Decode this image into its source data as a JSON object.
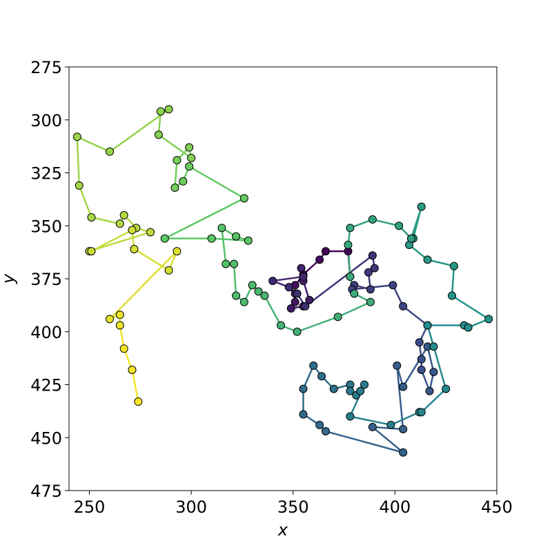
{
  "chart_data": {
    "type": "trajectory",
    "x_label": "x",
    "y_label": "y",
    "xlim": [
      240,
      450
    ],
    "ylim": [
      275,
      475
    ],
    "y_inverted": true,
    "xticks": [
      250,
      300,
      350,
      400,
      450
    ],
    "yticks": [
      275,
      300,
      325,
      350,
      375,
      400,
      425,
      450,
      475
    ],
    "colormap": [
      "#440154",
      "#3b528b",
      "#21918c",
      "#5ec962",
      "#fde725"
    ],
    "edge_color": "#000000",
    "x": [
      378,
      377,
      366,
      363,
      355,
      351,
      348,
      351,
      351,
      349,
      355,
      358,
      355,
      354,
      355,
      340,
      348,
      352,
      356,
      389,
      390,
      387,
      388,
      380,
      379,
      399,
      404,
      416,
      412,
      413,
      413,
      417,
      419,
      416,
      404,
      401,
      404,
      389,
      404,
      366,
      363,
      355,
      355,
      360,
      364,
      370,
      378,
      378,
      381,
      383,
      385,
      378,
      398,
      412,
      413,
      425,
      419,
      416,
      434,
      436,
      446,
      428,
      429,
      416,
      407,
      409,
      413,
      408,
      402,
      389,
      378,
      377,
      378,
      380,
      388,
      372,
      352,
      344,
      336,
      333,
      330,
      326,
      322,
      321,
      317,
      315,
      322,
      328,
      310,
      287,
      326,
      299,
      296,
      292,
      293,
      299,
      300,
      284,
      285,
      289,
      260,
      244,
      245,
      251,
      265,
      267,
      273,
      280,
      250,
      251,
      271,
      272,
      289,
      293,
      260,
      265,
      265,
      267,
      271,
      274
    ],
    "y": [
      374,
      362,
      362,
      366,
      373,
      378,
      379,
      382,
      386,
      389,
      388,
      385,
      376,
      370,
      374,
      376,
      379,
      382,
      388,
      364,
      370,
      372,
      380,
      378,
      380,
      378,
      388,
      397,
      405,
      413,
      418,
      428,
      419,
      407,
      426,
      416,
      446,
      445,
      457,
      447,
      444,
      439,
      427,
      416,
      421,
      427,
      425,
      428,
      430,
      428,
      425,
      440,
      444,
      438,
      438,
      427,
      407,
      397,
      397,
      398,
      394,
      383,
      369,
      366,
      359,
      356,
      341,
      356,
      350,
      347,
      351,
      359,
      374,
      382,
      386,
      393,
      400,
      397,
      383,
      381,
      378,
      386,
      383,
      368,
      368,
      351,
      355,
      357,
      356,
      356,
      337,
      322,
      329,
      332,
      319,
      313,
      318,
      307,
      296,
      295,
      315,
      308,
      331,
      346,
      349,
      345,
      351,
      353,
      362,
      362,
      352,
      361,
      371,
      362,
      394,
      392,
      397,
      408,
      418,
      433
    ]
  }
}
